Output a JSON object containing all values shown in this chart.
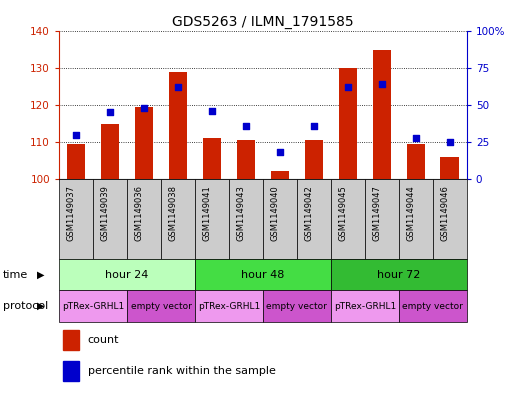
{
  "title": "GDS5263 / ILMN_1791585",
  "samples": [
    "GSM1149037",
    "GSM1149039",
    "GSM1149036",
    "GSM1149038",
    "GSM1149041",
    "GSM1149043",
    "GSM1149040",
    "GSM1149042",
    "GSM1149045",
    "GSM1149047",
    "GSM1149044",
    "GSM1149046"
  ],
  "bar_values": [
    109.5,
    115.0,
    119.5,
    129.0,
    111.0,
    110.5,
    102.0,
    110.5,
    130.0,
    135.0,
    109.5,
    106.0
  ],
  "bar_base": 100,
  "percentile_values": [
    30,
    45,
    48,
    62,
    46,
    36,
    18,
    36,
    62,
    64,
    28,
    25
  ],
  "ylim": [
    100,
    140
  ],
  "y2lim": [
    0,
    100
  ],
  "yticks": [
    100,
    110,
    120,
    130,
    140
  ],
  "y2ticks": [
    0,
    25,
    50,
    75,
    100
  ],
  "y2tick_labels": [
    "0",
    "25",
    "50",
    "75",
    "100%"
  ],
  "bar_color": "#cc2200",
  "dot_color": "#0000cc",
  "title_fontsize": 10,
  "time_groups": [
    {
      "label": "hour 24",
      "start": 0,
      "end": 4,
      "color": "#bbffbb"
    },
    {
      "label": "hour 48",
      "start": 4,
      "end": 8,
      "color": "#44dd44"
    },
    {
      "label": "hour 72",
      "start": 8,
      "end": 12,
      "color": "#33bb33"
    }
  ],
  "protocol_groups": [
    {
      "label": "pTRex-GRHL1",
      "start": 0,
      "end": 2,
      "color": "#ee99ee"
    },
    {
      "label": "empty vector",
      "start": 2,
      "end": 4,
      "color": "#cc55cc"
    },
    {
      "label": "pTRex-GRHL1",
      "start": 4,
      "end": 6,
      "color": "#ee99ee"
    },
    {
      "label": "empty vector",
      "start": 6,
      "end": 8,
      "color": "#cc55cc"
    },
    {
      "label": "pTRex-GRHL1",
      "start": 8,
      "end": 10,
      "color": "#ee99ee"
    },
    {
      "label": "empty vector",
      "start": 10,
      "end": 12,
      "color": "#cc55cc"
    }
  ],
  "sample_bg_color": "#cccccc",
  "left_label_time": "time",
  "left_label_protocol": "protocol"
}
